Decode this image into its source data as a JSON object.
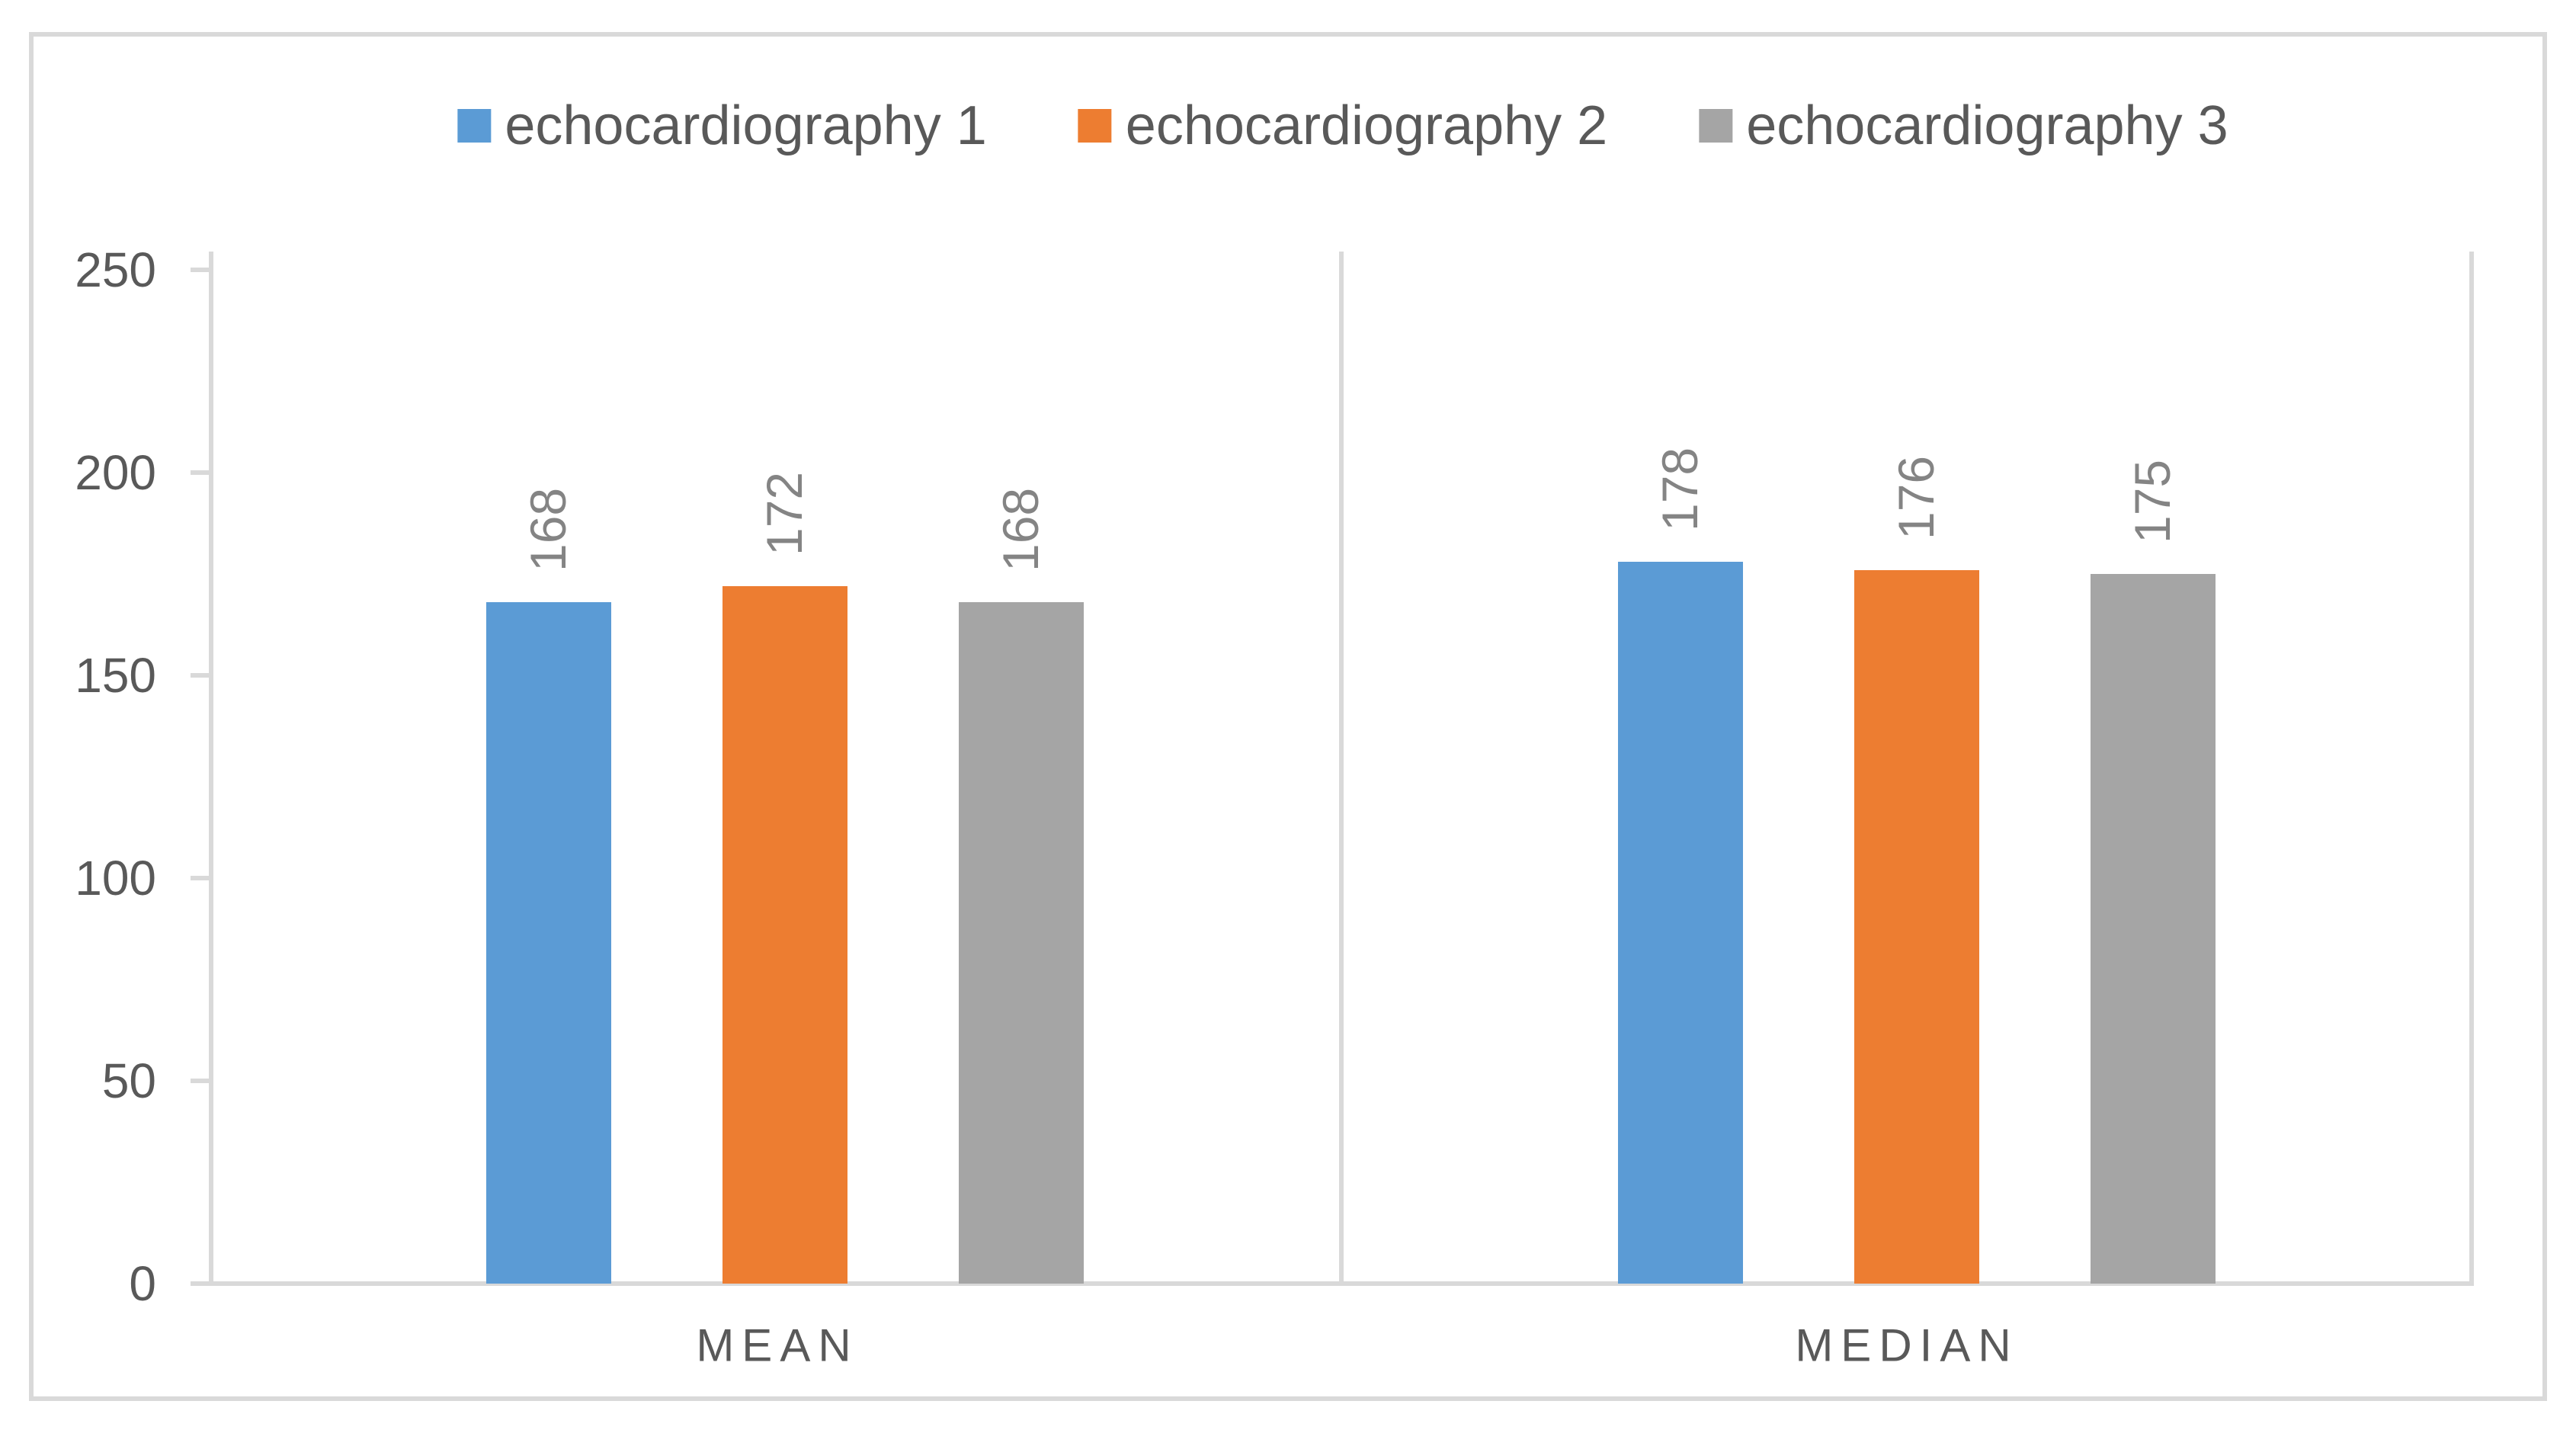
{
  "chart_data": {
    "type": "bar",
    "categories": [
      "MEAN",
      "MEDIAN"
    ],
    "series": [
      {
        "name": "echocardiography 1",
        "color": "#5B9BD5",
        "values": [
          168,
          178
        ]
      },
      {
        "name": "echocardiography 2",
        "color": "#ED7D31",
        "values": [
          172,
          176
        ]
      },
      {
        "name": "echocardiography 3",
        "color": "#A5A5A5",
        "values": [
          168,
          175
        ]
      }
    ],
    "yticks": [
      0,
      50,
      100,
      150,
      200,
      250
    ],
    "ylim": [
      0,
      250
    ],
    "xlabel": "",
    "ylabel": "",
    "grid": false,
    "legend_position": "top-center",
    "data_labels": "rotated-90-above-bars"
  },
  "colors": {
    "background": "#FFFFFF",
    "figure_border": "#D9D9D9",
    "axis_line": "#D9D9D9",
    "axis_text": "#595959",
    "category_text": "#595959",
    "value_label_text": "#848484"
  }
}
